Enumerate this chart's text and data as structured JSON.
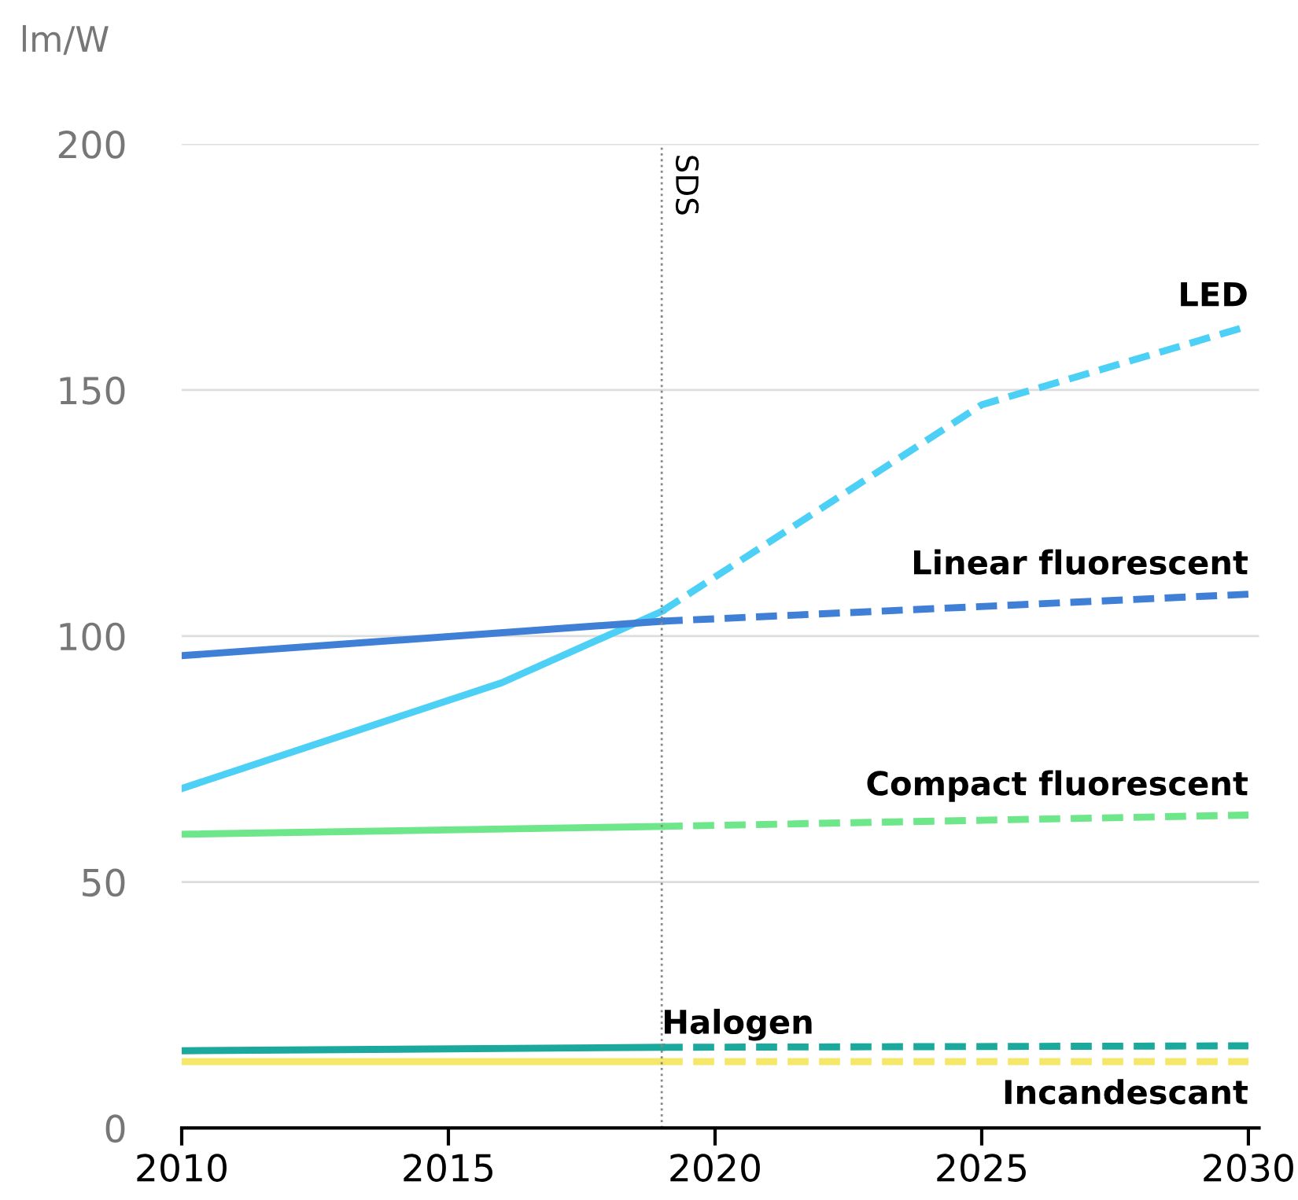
{
  "chart_data": {
    "type": "line",
    "ylabel": "lm/W",
    "xlim": [
      2010,
      2030.2
    ],
    "xticks": [
      2010,
      2015,
      2020,
      2025,
      2030
    ],
    "ylim": [
      0,
      200
    ],
    "yticks": [
      0,
      50,
      100,
      150,
      200
    ],
    "grid": "y",
    "series": [
      {
        "color": "#4dd0f5",
        "line_style": "solid",
        "x": [
          2010,
          2016,
          2019
        ],
        "values": [
          69,
          90.5,
          105
        ]
      },
      {
        "name": "LED",
        "color": "#4dd0f5",
        "line_style": "dashed",
        "x": [
          2019,
          2025,
          2030
        ],
        "values": [
          105,
          147,
          163
        ]
      },
      {
        "color": "#3f7fd6",
        "line_style": "solid",
        "x": [
          2010,
          2019
        ],
        "values": [
          96,
          103
        ]
      },
      {
        "name": "Linear fluorescent",
        "color": "#3f7fd6",
        "line_style": "dashed",
        "x": [
          2019,
          2030
        ],
        "values": [
          103,
          108.5
        ]
      },
      {
        "color": "#6ee68a",
        "line_style": "solid",
        "x": [
          2010,
          2019
        ],
        "values": [
          59.7,
          61.3
        ]
      },
      {
        "name": "Compact fluorescent",
        "color": "#6ee68a",
        "line_style": "dashed",
        "x": [
          2019,
          2030
        ],
        "values": [
          61.3,
          63.6
        ]
      },
      {
        "color": "#1aa99c",
        "line_style": "solid",
        "x": [
          2010,
          2019
        ],
        "values": [
          15.7,
          16.4
        ]
      },
      {
        "name": "Halogen",
        "color": "#1aa99c",
        "line_style": "dashed",
        "x": [
          2019,
          2030
        ],
        "values": [
          16.4,
          16.7
        ]
      },
      {
        "color": "#f5e76a",
        "line_style": "solid",
        "x": [
          2010,
          2019
        ],
        "values": [
          13.5,
          13.5
        ]
      },
      {
        "name": "Incandescant",
        "color": "#f5e76a",
        "line_style": "dashed",
        "x": [
          2019,
          2030
        ],
        "values": [
          13.5,
          13.5
        ]
      }
    ],
    "ref_lines": [
      {
        "axis": "x",
        "value": 2019,
        "label": "SDS",
        "color": "#888888",
        "line_style": "dotted"
      }
    ]
  }
}
